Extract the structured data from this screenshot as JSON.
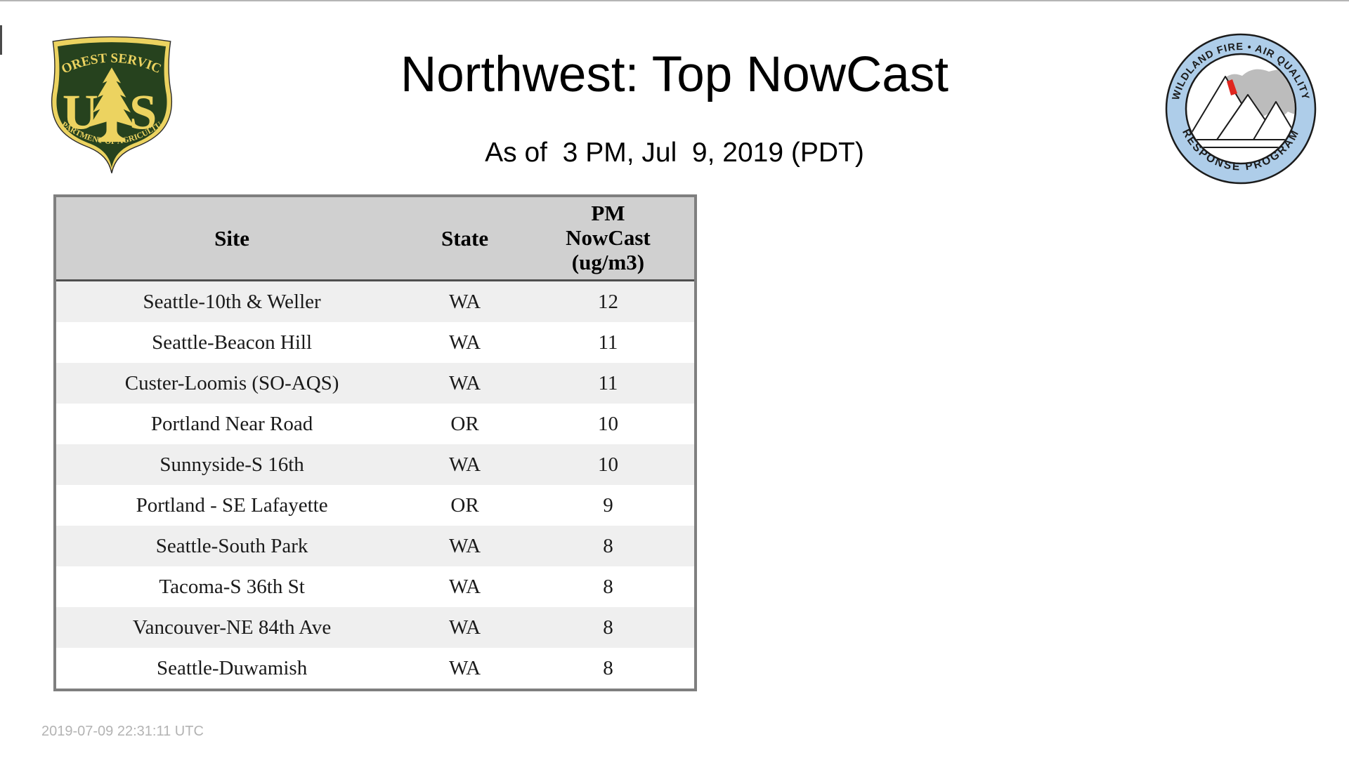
{
  "page": {
    "title": "Northwest: Top NowCast",
    "subtitle": "As of  3 PM, Jul  9, 2019 (PDT)",
    "footer_timestamp": "2019-07-09 22:31:11 UTC"
  },
  "logos": {
    "usfs": {
      "top_arc": "FOREST SERVICE",
      "monogram_left": "U",
      "monogram_right": "S",
      "bottom_arc": "DEPARTMENT OF AGRICULTURE"
    },
    "wfaqrp": {
      "top_arc": "WILDLAND FIRE • AIR QUALITY",
      "bottom_arc": "RESPONSE PROGRAM"
    }
  },
  "table": {
    "header": {
      "site": "Site",
      "state": "State",
      "pm_lines": [
        "PM",
        "NowCast",
        "(ug/m3)"
      ]
    },
    "rows": [
      {
        "site": "Seattle-10th & Weller",
        "state": "WA",
        "nowcast": "12"
      },
      {
        "site": "Seattle-Beacon Hill",
        "state": "WA",
        "nowcast": "11"
      },
      {
        "site": "Custer-Loomis (SO-AQS)",
        "state": "WA",
        "nowcast": "11"
      },
      {
        "site": "Portland Near Road",
        "state": "OR",
        "nowcast": "10"
      },
      {
        "site": "Sunnyside-S 16th",
        "state": "WA",
        "nowcast": "10"
      },
      {
        "site": "Portland - SE Lafayette",
        "state": "OR",
        "nowcast": "9"
      },
      {
        "site": "Seattle-South Park",
        "state": "WA",
        "nowcast": "8"
      },
      {
        "site": "Tacoma-S 36th St",
        "state": "WA",
        "nowcast": "8"
      },
      {
        "site": "Vancouver-NE 84th Ave",
        "state": "WA",
        "nowcast": "8"
      },
      {
        "site": "Seattle-Duwamish",
        "state": "WA",
        "nowcast": "8"
      }
    ]
  },
  "colors": {
    "header_bg": "#d0d0d0",
    "row_stripe": "#efefef",
    "table_border": "#7f7f7f",
    "header_rule": "#4f4f4f",
    "body_text": "#1a1a1a",
    "footer_gray": "#b3b3b3",
    "usfs_green": "#26421e",
    "usfs_gold": "#ecd360",
    "ring_blue": "#aecde9",
    "smoke_gray": "#bcbcbc",
    "flame_red": "#e0261f"
  }
}
